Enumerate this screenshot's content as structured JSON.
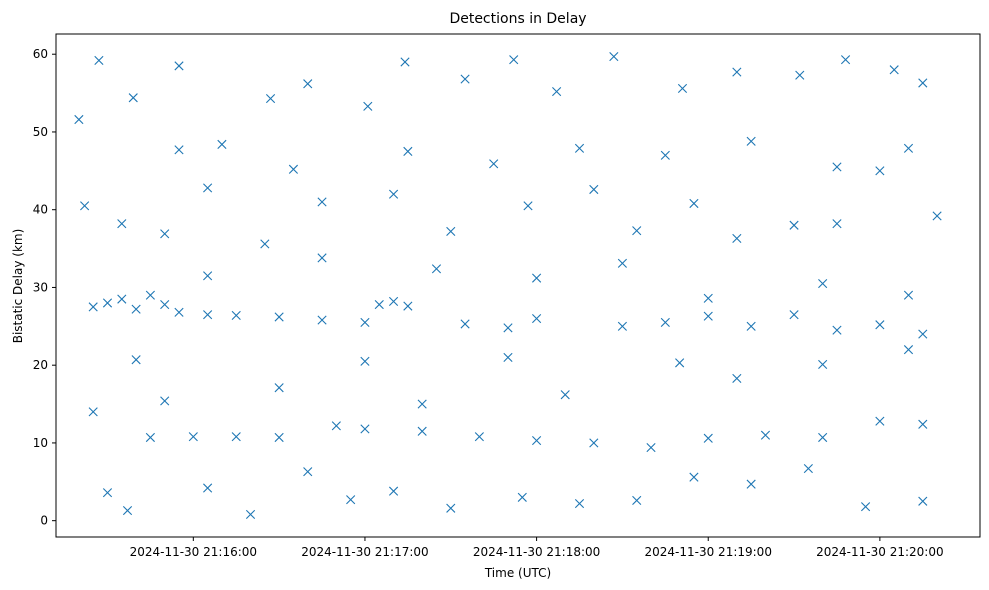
{
  "chart_data": {
    "type": "scatter",
    "title": "Detections in Delay",
    "xlabel": "Time (UTC)",
    "ylabel": "Bistatic Delay (km)",
    "xlim": [
      "2024-11-30 21:15:12",
      "2024-11-30 21:20:35"
    ],
    "ylim": [
      -2.1,
      62.6
    ],
    "x_ticks": [
      "2024-11-30 21:16:00",
      "2024-11-30 21:17:00",
      "2024-11-30 21:18:00",
      "2024-11-30 21:19:00",
      "2024-11-30 21:20:00"
    ],
    "y_ticks": [
      0,
      10,
      20,
      30,
      40,
      50,
      60
    ],
    "grid": false,
    "marker": "x",
    "color": "#1f77b4",
    "series": [
      {
        "points": [
          [
            "2024-11-30 21:15:25",
            27.5
          ],
          [
            "2024-11-30 21:15:30",
            28.0
          ],
          [
            "2024-11-30 21:15:35",
            28.5
          ],
          [
            "2024-11-30 21:15:40",
            27.2
          ],
          [
            "2024-11-30 21:15:45",
            29.0
          ],
          [
            "2024-11-30 21:15:50",
            27.8
          ],
          [
            "2024-11-30 21:15:55",
            26.8
          ],
          [
            "2024-11-30 21:16:05",
            26.5
          ],
          [
            "2024-11-30 21:16:15",
            26.4
          ],
          [
            "2024-11-30 21:16:30",
            26.2
          ],
          [
            "2024-11-30 21:16:45",
            25.8
          ],
          [
            "2024-11-30 21:17:00",
            25.5
          ],
          [
            "2024-11-30 21:17:05",
            27.8
          ],
          [
            "2024-11-30 21:17:10",
            28.2
          ],
          [
            "2024-11-30 21:17:15",
            27.6
          ],
          [
            "2024-11-30 21:17:35",
            25.3
          ],
          [
            "2024-11-30 21:17:50",
            24.8
          ],
          [
            "2024-11-30 21:18:00",
            26.0
          ],
          [
            "2024-11-30 21:18:30",
            25.0
          ],
          [
            "2024-11-30 21:18:45",
            25.5
          ],
          [
            "2024-11-30 21:19:00",
            26.3
          ],
          [
            "2024-11-30 21:19:15",
            25.0
          ],
          [
            "2024-11-30 21:19:30",
            26.5
          ],
          [
            "2024-11-30 21:19:45",
            24.5
          ],
          [
            "2024-11-30 21:20:00",
            25.2
          ],
          [
            "2024-11-30 21:20:15",
            24.0
          ],
          [
            "2024-11-30 21:15:45",
            10.7
          ],
          [
            "2024-11-30 21:16:00",
            10.8
          ],
          [
            "2024-11-30 21:16:15",
            10.8
          ],
          [
            "2024-11-30 21:16:30",
            10.7
          ],
          [
            "2024-11-30 21:16:50",
            12.2
          ],
          [
            "2024-11-30 21:17:00",
            11.8
          ],
          [
            "2024-11-30 21:17:20",
            11.5
          ],
          [
            "2024-11-30 21:17:40",
            10.8
          ],
          [
            "2024-11-30 21:18:00",
            10.3
          ],
          [
            "2024-11-30 21:18:20",
            10.0
          ],
          [
            "2024-11-30 21:18:40",
            9.4
          ],
          [
            "2024-11-30 21:19:00",
            10.6
          ],
          [
            "2024-11-30 21:19:20",
            11.0
          ],
          [
            "2024-11-30 21:19:40",
            10.7
          ],
          [
            "2024-11-30 21:20:00",
            12.8
          ],
          [
            "2024-11-30 21:20:15",
            12.4
          ],
          [
            "2024-11-30 21:15:20",
            51.6
          ],
          [
            "2024-11-30 21:15:27",
            59.2
          ],
          [
            "2024-11-30 21:15:39",
            54.4
          ],
          [
            "2024-11-30 21:15:55",
            58.5
          ],
          [
            "2024-11-30 21:16:10",
            48.4
          ],
          [
            "2024-11-30 21:16:27",
            54.3
          ],
          [
            "2024-11-30 21:16:40",
            56.2
          ],
          [
            "2024-11-30 21:17:01",
            53.3
          ],
          [
            "2024-11-30 21:17:14",
            59.0
          ],
          [
            "2024-11-30 21:17:35",
            56.8
          ],
          [
            "2024-11-30 21:17:52",
            59.3
          ],
          [
            "2024-11-30 21:18:07",
            55.2
          ],
          [
            "2024-11-30 21:18:27",
            59.7
          ],
          [
            "2024-11-30 21:18:51",
            55.6
          ],
          [
            "2024-11-30 21:19:10",
            57.7
          ],
          [
            "2024-11-30 21:19:32",
            57.3
          ],
          [
            "2024-11-30 21:19:48",
            59.3
          ],
          [
            "2024-11-30 21:20:05",
            58.0
          ],
          [
            "2024-11-30 21:20:15",
            56.3
          ],
          [
            "2024-11-30 21:15:22",
            40.5
          ],
          [
            "2024-11-30 21:15:35",
            38.2
          ],
          [
            "2024-11-30 21:15:50",
            36.9
          ],
          [
            "2024-11-30 21:16:05",
            42.8
          ],
          [
            "2024-11-30 21:16:25",
            35.6
          ],
          [
            "2024-11-30 21:16:45",
            41.0
          ],
          [
            "2024-11-30 21:17:10",
            42.0
          ],
          [
            "2024-11-30 21:17:30",
            37.2
          ],
          [
            "2024-11-30 21:17:57",
            40.5
          ],
          [
            "2024-11-30 21:18:20",
            42.6
          ],
          [
            "2024-11-30 21:18:35",
            37.3
          ],
          [
            "2024-11-30 21:18:55",
            40.8
          ],
          [
            "2024-11-30 21:19:10",
            36.3
          ],
          [
            "2024-11-30 21:19:30",
            38.0
          ],
          [
            "2024-11-30 21:19:45",
            38.2
          ],
          [
            "2024-11-30 21:20:00",
            45.0
          ],
          [
            "2024-11-30 21:20:20",
            39.2
          ],
          [
            "2024-11-30 21:15:25",
            14.0
          ],
          [
            "2024-11-30 21:15:30",
            3.6
          ],
          [
            "2024-11-30 21:15:37",
            1.3
          ],
          [
            "2024-11-30 21:15:50",
            15.4
          ],
          [
            "2024-11-30 21:16:05",
            4.2
          ],
          [
            "2024-11-30 21:16:20",
            0.8
          ],
          [
            "2024-11-30 21:16:40",
            6.3
          ],
          [
            "2024-11-30 21:16:55",
            2.7
          ],
          [
            "2024-11-30 21:17:10",
            3.8
          ],
          [
            "2024-11-30 21:17:30",
            1.6
          ],
          [
            "2024-11-30 21:17:55",
            3.0
          ],
          [
            "2024-11-30 21:18:15",
            2.2
          ],
          [
            "2024-11-30 21:18:35",
            2.6
          ],
          [
            "2024-11-30 21:18:55",
            5.6
          ],
          [
            "2024-11-30 21:19:15",
            4.7
          ],
          [
            "2024-11-30 21:19:35",
            6.7
          ],
          [
            "2024-11-30 21:19:55",
            1.8
          ],
          [
            "2024-11-30 21:20:15",
            2.5
          ],
          [
            "2024-11-30 21:15:40",
            20.7
          ],
          [
            "2024-11-30 21:16:30",
            17.1
          ],
          [
            "2024-11-30 21:17:00",
            20.5
          ],
          [
            "2024-11-30 21:17:20",
            15.0
          ],
          [
            "2024-11-30 21:17:50",
            21.0
          ],
          [
            "2024-11-30 21:18:10",
            16.2
          ],
          [
            "2024-11-30 21:18:50",
            20.3
          ],
          [
            "2024-11-30 21:19:10",
            18.3
          ],
          [
            "2024-11-30 21:19:40",
            20.1
          ],
          [
            "2024-11-30 21:20:10",
            22.0
          ],
          [
            "2024-11-30 21:16:05",
            31.5
          ],
          [
            "2024-11-30 21:16:45",
            33.8
          ],
          [
            "2024-11-30 21:17:25",
            32.4
          ],
          [
            "2024-11-30 21:18:00",
            31.2
          ],
          [
            "2024-11-30 21:18:30",
            33.1
          ],
          [
            "2024-11-30 21:19:00",
            28.6
          ],
          [
            "2024-11-30 21:19:40",
            30.5
          ],
          [
            "2024-11-30 21:20:10",
            29.0
          ],
          [
            "2024-11-30 21:15:55",
            47.7
          ],
          [
            "2024-11-30 21:16:35",
            45.2
          ],
          [
            "2024-11-30 21:17:15",
            47.5
          ],
          [
            "2024-11-30 21:17:45",
            45.9
          ],
          [
            "2024-11-30 21:18:15",
            47.9
          ],
          [
            "2024-11-30 21:18:45",
            47.0
          ],
          [
            "2024-11-30 21:19:15",
            48.8
          ],
          [
            "2024-11-30 21:19:45",
            45.5
          ],
          [
            "2024-11-30 21:20:10",
            47.9
          ]
        ]
      }
    ]
  }
}
